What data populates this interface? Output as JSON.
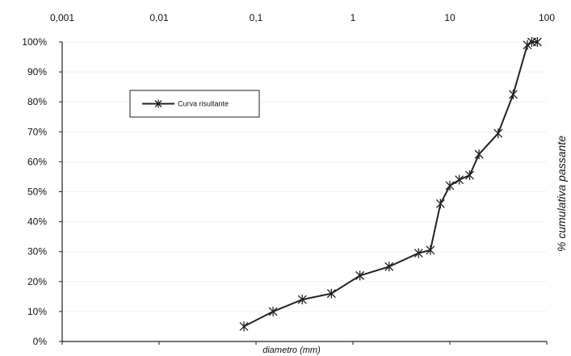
{
  "chart_data": {
    "type": "line",
    "xlabel": "diametro (mm)",
    "ylabel": "% cumulativa passante",
    "xscale": "log",
    "xlim": [
      0.001,
      100
    ],
    "ylim": [
      0,
      100
    ],
    "x_tick_labels": [
      "0,001",
      "0,01",
      "0,1",
      "1",
      "10",
      "100"
    ],
    "y_tick_labels": [
      "0%",
      "10%",
      "20%",
      "30%",
      "40%",
      "50%",
      "60%",
      "70%",
      "80%",
      "90%",
      "100%"
    ],
    "legend": {
      "position": "top-left",
      "entries": [
        "Curva risultante"
      ]
    },
    "series": [
      {
        "name": "Curva risultante",
        "x": [
          0.075,
          0.15,
          0.3,
          0.6,
          1.18,
          2.36,
          4.75,
          6.3,
          8,
          10,
          12.5,
          16,
          20,
          31.5,
          45,
          63,
          70,
          80
        ],
        "y": [
          5,
          10,
          14,
          16,
          22,
          25,
          29.5,
          30.5,
          46,
          52,
          54,
          55.5,
          62.5,
          69.5,
          82.5,
          99,
          100,
          100
        ]
      }
    ]
  }
}
